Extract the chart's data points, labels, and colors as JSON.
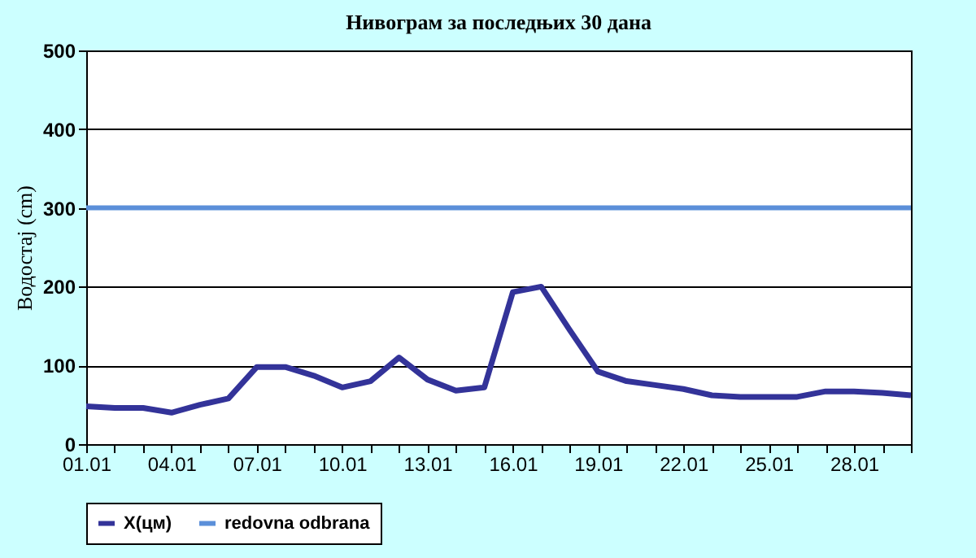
{
  "chart_data": {
    "type": "line",
    "title": "Нивограм за последњих 30 дана",
    "ylabel": "Водостај (cm)",
    "categories": [
      "01.01",
      null,
      null,
      "04.01",
      null,
      null,
      "07.01",
      null,
      null,
      "10.01",
      null,
      null,
      "13.01",
      null,
      null,
      "16.01",
      null,
      null,
      "19.01",
      null,
      null,
      "22.01",
      null,
      null,
      "25.01",
      null,
      null,
      "28.01",
      null,
      null
    ],
    "series": [
      {
        "name": "X(цм)",
        "color": "#333399",
        "values": [
          48,
          46,
          46,
          40,
          50,
          58,
          98,
          98,
          87,
          72,
          80,
          110,
          82,
          68,
          72,
          193,
          200,
          145,
          92,
          80,
          75,
          70,
          62,
          60,
          60,
          60,
          67,
          67,
          65,
          62
        ]
      }
    ],
    "ref_lines": [
      {
        "axis": "y",
        "value": 300,
        "label": "redovna odbrana",
        "color": "#5b8fd9"
      }
    ],
    "ylim": [
      0,
      500
    ],
    "yticks": [
      0,
      100,
      200,
      300,
      400,
      500
    ],
    "grid": "y",
    "legend": "bottom",
    "marker": "none",
    "line_style": "solid"
  }
}
